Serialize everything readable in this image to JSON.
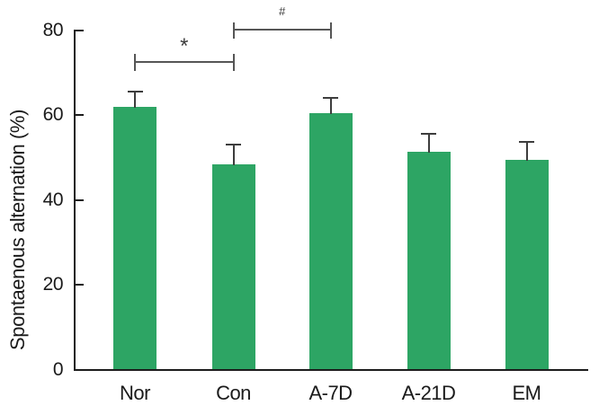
{
  "figure": {
    "background": "#ffffff"
  },
  "chart_data": {
    "type": "bar",
    "title": "",
    "xlabel": "",
    "ylabel": "Spontaenous alternation (%)",
    "categories": [
      "Nor",
      "Con",
      "A-7D",
      "A-21D",
      "EM"
    ],
    "values": [
      61.9,
      48.4,
      60.4,
      51.4,
      49.5
    ],
    "errors_plus": [
      3.6,
      4.6,
      3.5,
      4.2,
      4.0
    ],
    "ylim": [
      0,
      80
    ],
    "yticks": [
      0,
      20,
      40,
      60,
      80
    ],
    "grid": false,
    "legend": null,
    "bar_color": "#2da564",
    "error_bar_color": "#3d3d3d",
    "axis_color": "#1c1c1c",
    "bracket_color": "#565656",
    "annotations": [
      {
        "type": "significance-bracket",
        "from": "Nor",
        "to": "Con",
        "label": "*"
      },
      {
        "type": "significance-bracket",
        "from": "Con",
        "to": "A-7D",
        "label": "#"
      }
    ]
  }
}
